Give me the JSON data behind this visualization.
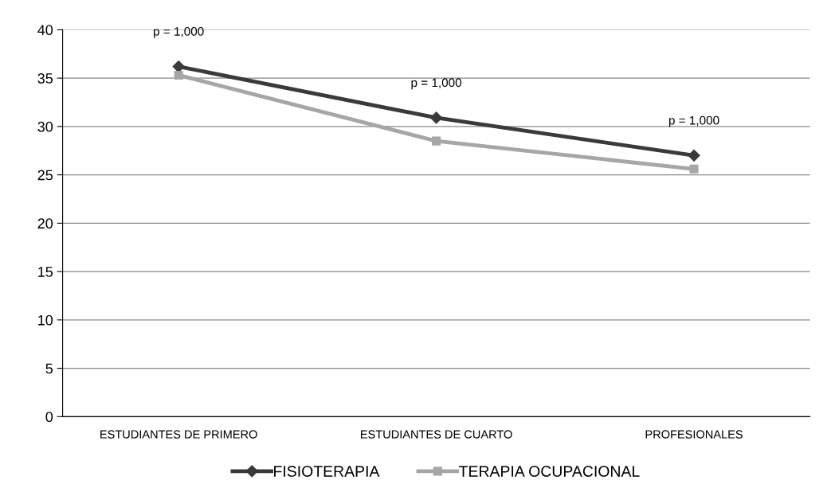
{
  "chart_data": {
    "type": "line",
    "categories": [
      "ESTUDIANTES DE PRIMERO",
      "ESTUDIANTES DE CUARTO",
      "PROFESIONALES"
    ],
    "series": [
      {
        "name": "FISIOTERAPIA",
        "color": "#3a3a3a",
        "values": [
          36.2,
          30.9,
          27.0
        ],
        "marker": "diamond"
      },
      {
        "name": "TERAPIA OCUPACIONAL",
        "color": "#a6a6a6",
        "values": [
          35.3,
          28.5,
          25.6
        ],
        "marker": "square"
      }
    ],
    "ylim": [
      0,
      40
    ],
    "yticks": [
      0,
      5,
      10,
      15,
      20,
      25,
      30,
      35,
      40
    ],
    "grid": "y",
    "legend": "bottom",
    "line_style": "solid",
    "annotations": [
      {
        "text": "p = 1,000",
        "x": "ESTUDIANTES DE PRIMERO",
        "y": 36.2
      },
      {
        "text": "p = 1,000",
        "x": "ESTUDIANTES DE CUARTO",
        "y": 30.9
      },
      {
        "text": "p = 1,000",
        "x": "PROFESIONALES",
        "y": 27.0
      }
    ]
  }
}
